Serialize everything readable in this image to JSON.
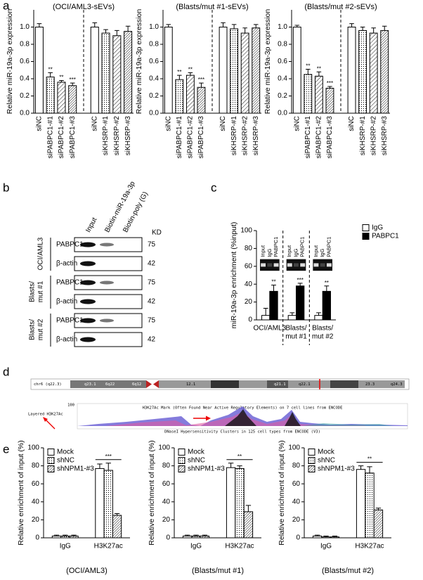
{
  "panel_labels": [
    "a",
    "b",
    "c",
    "d",
    "e"
  ],
  "chart_data": [
    {
      "type": "bar",
      "title": "(OCI/AML3-sEVs)",
      "ylabel": "Relative miR-19a-3p expression",
      "categories": [
        "siNC",
        "siPABPC1-#1",
        "siPABPC1-#2",
        "siPABPC1-#3",
        "siNC",
        "siKHSRP-#1",
        "siKHSRP-#2",
        "siKHSRP-#3"
      ],
      "values": [
        1.0,
        0.42,
        0.36,
        0.32,
        1.0,
        0.93,
        0.9,
        0.95
      ],
      "errors": [
        0.04,
        0.05,
        0.02,
        0.03,
        0.05,
        0.04,
        0.06,
        0.06
      ],
      "color": "#ffffff",
      "patterns": [
        null,
        "dots",
        "hatch",
        "hatch-dense",
        null,
        "dots",
        "hatch",
        "hatch-dense"
      ],
      "significance": [
        null,
        "**",
        "**",
        "***",
        null,
        null,
        null,
        null
      ],
      "separator_after": 3,
      "ylim": [
        0,
        1.2
      ],
      "yticks": [
        {
          "value": 0,
          "label": "0.0"
        },
        0.2,
        0.4,
        0.6,
        0.8,
        {
          "value": 1,
          "label": "1.0"
        }
      ]
    },
    {
      "type": "bar",
      "title": "(Blasts/mut #1-sEVs)",
      "ylabel": "Relative miR-19a-3p expression",
      "categories": [
        "siNC",
        "siPABPC1-#1",
        "siPABPC1-#2",
        "siPABPC1-#3",
        "siNC",
        "siKHSRP-#1",
        "siKHSRP-#2",
        "siKHSRP-#3"
      ],
      "values": [
        1.0,
        0.39,
        0.44,
        0.3,
        1.0,
        0.98,
        0.93,
        0.99
      ],
      "errors": [
        0.03,
        0.05,
        0.03,
        0.05,
        0.05,
        0.05,
        0.06,
        0.04
      ],
      "color": "#ffffff",
      "patterns": [
        null,
        "dots",
        "hatch",
        "hatch-dense",
        null,
        "dots",
        "hatch",
        "hatch-dense"
      ],
      "significance": [
        null,
        "**",
        "**",
        "***",
        null,
        null,
        null,
        null
      ],
      "separator_after": 3,
      "ylim": [
        0,
        1.2
      ],
      "yticks": [
        {
          "value": 0,
          "label": "0.0"
        },
        0.2,
        0.4,
        0.6,
        0.8,
        {
          "value": 1,
          "label": "1.0"
        }
      ]
    },
    {
      "type": "bar",
      "title": "(Blasts/mut #2-sEVs)",
      "ylabel": "Relative miR-19a-3p expression",
      "categories": [
        "siNC",
        "siPABPC1-#1",
        "siPABPC1-#2",
        "siPABPC1-#3",
        "siNC",
        "siKHSRP-#1",
        "siKHSRP-#2",
        "siKHSRP-#3"
      ],
      "values": [
        1.0,
        0.45,
        0.43,
        0.29,
        1.0,
        0.96,
        0.93,
        0.96
      ],
      "errors": [
        0.02,
        0.06,
        0.05,
        0.02,
        0.04,
        0.04,
        0.06,
        0.05
      ],
      "color": "#ffffff",
      "patterns": [
        null,
        "dots",
        "hatch",
        "hatch-dense",
        null,
        "dots",
        "hatch",
        "hatch-dense"
      ],
      "significance": [
        null,
        "**",
        "**",
        "***",
        null,
        null,
        null,
        null
      ],
      "separator_after": 3,
      "ylim": [
        0,
        1.2
      ],
      "yticks": [
        {
          "value": 0,
          "label": "0.0"
        },
        0.2,
        0.4,
        0.6,
        0.8,
        {
          "value": 1,
          "label": "1.0"
        }
      ]
    },
    {
      "type": "bar",
      "ylabel": "miR-19a-3p enrichment (%input)",
      "categories": [
        [
          "OCI/AML3"
        ],
        [
          "Blasts/",
          "mut #1"
        ],
        [
          "Blasts/",
          "mut #2"
        ]
      ],
      "gel_lanes": [
        "Input",
        "IgG",
        "PABPC1"
      ],
      "series": [
        {
          "name": "IgG",
          "color": "#ffffff",
          "values": [
            5,
            5,
            5
          ],
          "errors": [
            8,
            3,
            3
          ]
        },
        {
          "name": "PABPC1",
          "color": "#000000",
          "values": [
            32,
            38,
            32
          ],
          "errors": [
            7,
            3,
            6
          ],
          "significance": [
            "**",
            "***",
            "**"
          ]
        }
      ],
      "ylim": [
        0,
        100
      ],
      "yticks": [
        0,
        20,
        40,
        60,
        80,
        100
      ],
      "legend": "outside-right",
      "separators": true
    },
    {
      "type": "bar",
      "ylabel": "Relative enrichment of input (%)",
      "subtitle": "(OCI/AML3)",
      "categories": [
        "IgG",
        "H3K27ac"
      ],
      "series": [
        {
          "name": "Mock",
          "color": "#ffffff",
          "values": [
            2,
            77
          ],
          "errors": [
            1,
            5
          ]
        },
        {
          "name": "shNC",
          "color": "#ffffff",
          "pattern": "dots",
          "values": [
            2,
            75
          ],
          "errors": [
            1,
            8
          ]
        },
        {
          "name": "shNPM1-#3",
          "color": "#ffffff",
          "pattern": "hatch-dense",
          "values": [
            2,
            25
          ],
          "errors": [
            1,
            2
          ]
        }
      ],
      "significance": [
        null,
        "***"
      ],
      "ylim": [
        0,
        100
      ],
      "yticks": [
        0,
        20,
        40,
        60,
        80,
        100
      ],
      "legend": "upper-left"
    },
    {
      "type": "bar",
      "ylabel": "Relative enrichment of input (%)",
      "subtitle": "(Blasts/mut #1)",
      "categories": [
        "IgG",
        "H3K27ac"
      ],
      "series": [
        {
          "name": "Mock",
          "color": "#ffffff",
          "values": [
            2,
            78
          ],
          "errors": [
            1,
            5
          ]
        },
        {
          "name": "shNC",
          "color": "#ffffff",
          "pattern": "dots",
          "values": [
            2,
            77
          ],
          "errors": [
            1,
            3
          ]
        },
        {
          "name": "shNPM1-#3",
          "color": "#ffffff",
          "pattern": "hatch-dense",
          "values": [
            2,
            29
          ],
          "errors": [
            1,
            7
          ]
        }
      ],
      "significance": [
        null,
        "**"
      ],
      "ylim": [
        0,
        100
      ],
      "yticks": [
        0,
        20,
        40,
        60,
        80,
        100
      ],
      "legend": "upper-left"
    },
    {
      "type": "bar",
      "ylabel": "Relative enrichment of input (%)",
      "subtitle": "(Blasts/mut #2)",
      "categories": [
        "IgG",
        "H3K27ac"
      ],
      "series": [
        {
          "name": "Mock",
          "color": "#ffffff",
          "values": [
            2,
            76
          ],
          "errors": [
            1,
            4
          ]
        },
        {
          "name": "shNC",
          "color": "#ffffff",
          "pattern": "dots",
          "values": [
            1,
            72
          ],
          "errors": [
            1,
            7
          ]
        },
        {
          "name": "shNPM1-#3",
          "color": "#ffffff",
          "pattern": "hatch-dense",
          "values": [
            1,
            31
          ],
          "errors": [
            1,
            2
          ]
        }
      ],
      "significance": [
        null,
        "**"
      ],
      "ylim": [
        0,
        100
      ],
      "yticks": [
        0,
        20,
        40,
        60,
        80,
        100
      ],
      "legend": "upper-left"
    }
  ],
  "panel_b": {
    "columns": [
      "Input",
      "Biotin-miR-19a-3p",
      "Biotin-poly (G)"
    ],
    "kd_header": "KD",
    "groups": [
      {
        "name": [
          "OCI/AML3"
        ],
        "rows": [
          {
            "protein": "PABPC1",
            "kd": 75
          },
          {
            "protein": "β-actin",
            "kd": 42
          }
        ]
      },
      {
        "name": [
          "Blasts/",
          "mut #1"
        ],
        "rows": [
          {
            "protein": "PABPC1",
            "kd": 75
          },
          {
            "protein": "β-actin",
            "kd": 42
          }
        ]
      },
      {
        "name": [
          "Blasts/",
          "mut #2"
        ],
        "rows": [
          {
            "protein": "PABPC1",
            "kd": 75
          },
          {
            "protein": "β-actin",
            "kd": 42
          }
        ]
      }
    ]
  },
  "panel_d": {
    "ideogram_label": "chr6 (q22.3)",
    "bands": [
      "q23.1",
      "6q22",
      "6q12",
      "12.1",
      "q21.1",
      "q22.1",
      "23.3",
      "q24.3"
    ],
    "track_label": "Layered H3K27Ac",
    "track_max": "100",
    "track_title": "H3K27Ac Mark (Often Found Near Active Regulatory Elements) on 7 cell lines from ENCODE",
    "dnase_title": "DNaseI Hypersensitivity Clusters in 125 cell types from ENCODE (V3)"
  }
}
